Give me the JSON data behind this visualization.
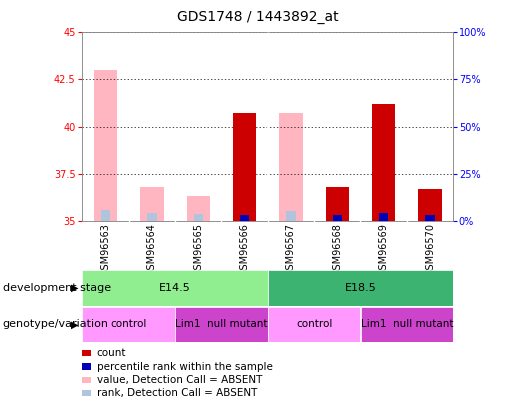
{
  "title": "GDS1748 / 1443892_at",
  "samples": [
    "GSM96563",
    "GSM96564",
    "GSM96565",
    "GSM96566",
    "GSM96567",
    "GSM96568",
    "GSM96569",
    "GSM96570"
  ],
  "ylim_left": [
    35,
    45
  ],
  "ylim_right": [
    0,
    100
  ],
  "yticks_left": [
    35,
    37.5,
    40,
    42.5,
    45
  ],
  "yticks_right": [
    0,
    25,
    50,
    75,
    100
  ],
  "ytick_labels_right": [
    "0%",
    "25%",
    "50%",
    "75%",
    "100%"
  ],
  "count_values": [
    null,
    null,
    null,
    40.7,
    null,
    36.8,
    41.2,
    36.7
  ],
  "rank_values": [
    null,
    null,
    null,
    35.3,
    null,
    35.3,
    35.4,
    35.3
  ],
  "count_absent_values": [
    43.0,
    36.8,
    36.3,
    null,
    40.7,
    null,
    null,
    null
  ],
  "rank_absent_values": [
    35.55,
    35.4,
    35.35,
    null,
    35.5,
    null,
    null,
    null
  ],
  "dev_stage_groups": [
    {
      "label": "E14.5",
      "start": 0,
      "end": 4,
      "color": "#90EE90"
    },
    {
      "label": "E18.5",
      "start": 4,
      "end": 8,
      "color": "#3CB371"
    }
  ],
  "genotype_groups": [
    {
      "label": "control",
      "start": 0,
      "end": 2,
      "color": "#FF99FF"
    },
    {
      "label": "Lim1  null mutant",
      "start": 2,
      "end": 4,
      "color": "#CC44CC"
    },
    {
      "label": "control",
      "start": 4,
      "end": 6,
      "color": "#FF99FF"
    },
    {
      "label": "Lim1  null mutant",
      "start": 6,
      "end": 8,
      "color": "#CC44CC"
    }
  ],
  "bar_width": 0.5,
  "count_color": "#CC0000",
  "rank_color": "#0000BB",
  "count_absent_color": "#FFB6C1",
  "rank_absent_color": "#B0C4DE",
  "plot_bg_color": "#FFFFFF",
  "title_fontsize": 10,
  "tick_fontsize": 7,
  "label_fontsize": 8,
  "legend_fontsize": 7.5
}
